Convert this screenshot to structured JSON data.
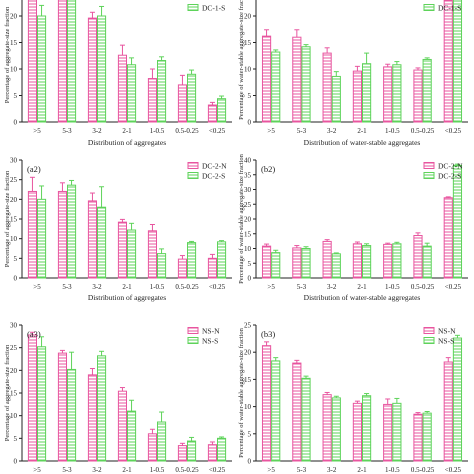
{
  "colors": {
    "n_series": "#e8559f",
    "s_series": "#5ed35a"
  },
  "chart_data": [
    {
      "type": "bar",
      "panel_label": "",
      "categories": [
        ">5",
        "5-3",
        "3-2",
        "2-1",
        "1-0.5",
        "0.5-0.25",
        "<0.25"
      ],
      "series": [
        {
          "name": "",
          "values": [
            25.8,
            23.6,
            19.6,
            12.6,
            8.2,
            7.0,
            3.2
          ],
          "errors": [
            1.6,
            1.0,
            1.1,
            1.9,
            1.8,
            1.8,
            0.5
          ]
        },
        {
          "name": "DC-1-S",
          "values": [
            20.0,
            23.8,
            20.0,
            10.8,
            11.6,
            9.0,
            4.4
          ],
          "errors": [
            2.0,
            1.4,
            1.8,
            1.3,
            0.7,
            0.8,
            0.5
          ]
        }
      ],
      "xlabel": "Distribution of aggregates",
      "ylabel": "Percentage of aggregate-size fraction",
      "ylim": [
        0,
        30
      ]
    },
    {
      "type": "bar",
      "panel_label": "",
      "categories": [
        ">5",
        "5-3",
        "3-2",
        "2-1",
        "1-0.5",
        "0.5-0.25",
        "<0.25"
      ],
      "series": [
        {
          "name": "",
          "values": [
            16.2,
            16.0,
            13.0,
            9.6,
            10.4,
            9.8,
            23.0
          ],
          "errors": [
            1.2,
            1.4,
            1.0,
            0.9,
            0.5,
            0.4,
            0.6
          ]
        },
        {
          "name": "DC-1-S",
          "values": [
            13.2,
            14.2,
            8.6,
            11.0,
            10.8,
            11.8,
            29.0
          ],
          "errors": [
            0.4,
            0.4,
            0.9,
            2.0,
            0.6,
            0.3,
            1.3
          ]
        }
      ],
      "xlabel": "Distribution of water-stable aggregates",
      "ylabel": "Percentage of water-stable aggregate-size fraction",
      "ylim": [
        0,
        30
      ]
    },
    {
      "type": "bar",
      "panel_label": "(a2)",
      "categories": [
        ">5",
        "5-3",
        "3-2",
        "2-1",
        "1-0.5",
        "0.5-0.25",
        "<0.25"
      ],
      "series": [
        {
          "name": "DC-2-N",
          "values": [
            22.0,
            22.0,
            19.6,
            14.2,
            12.0,
            4.8,
            5.0
          ],
          "errors": [
            3.6,
            2.2,
            2.0,
            0.7,
            1.6,
            0.9,
            1.0
          ]
        },
        {
          "name": "DC-2-S",
          "values": [
            20.0,
            23.6,
            18.0,
            12.2,
            6.2,
            9.0,
            9.2
          ],
          "errors": [
            3.4,
            1.2,
            5.2,
            1.7,
            1.2,
            0.3,
            0.3
          ]
        }
      ],
      "xlabel": "Distribution of aggregates",
      "ylabel": "Percentage of aggregate-size fraction",
      "ylim": [
        0,
        30
      ]
    },
    {
      "type": "bar",
      "panel_label": "(b2)",
      "categories": [
        ">5",
        "5-3",
        "3-2",
        "2-1",
        "1-0.5",
        "0.5-0.25",
        "<0.25"
      ],
      "series": [
        {
          "name": "DC-2-N",
          "values": [
            10.8,
            10.2,
            12.4,
            11.6,
            11.4,
            14.4,
            27.2
          ],
          "errors": [
            0.7,
            0.8,
            0.6,
            0.6,
            0.4,
            0.9,
            0.3
          ]
        },
        {
          "name": "DC-2-S",
          "values": [
            8.6,
            10.0,
            8.2,
            11.0,
            11.6,
            10.8,
            38.2
          ],
          "errors": [
            0.8,
            0.6,
            0.3,
            0.6,
            0.5,
            1.0,
            0.4
          ]
        }
      ],
      "xlabel": "Distribution of water-stable aggregates",
      "ylabel": "Percentage of water-stable aggregate-size fraction",
      "ylim": [
        0,
        40
      ]
    },
    {
      "type": "bar",
      "panel_label": "(a3)",
      "categories": [
        ">5",
        "5-3",
        "3-2",
        "2-1",
        "1-0.5",
        "0.5-0.25",
        "<0.25"
      ],
      "series": [
        {
          "name": "NS-N",
          "values": [
            27.8,
            23.8,
            19.0,
            15.4,
            6.0,
            3.4,
            3.6
          ],
          "errors": [
            0.6,
            0.6,
            1.4,
            0.8,
            1.0,
            0.5,
            0.6
          ]
        },
        {
          "name": "NS-S",
          "values": [
            25.2,
            20.2,
            23.2,
            11.0,
            8.6,
            4.4,
            5.0
          ],
          "errors": [
            2.2,
            3.8,
            1.0,
            2.4,
            2.2,
            0.8,
            0.3
          ]
        }
      ],
      "xlabel": "",
      "ylabel": "Percentage of aggregate-size fraction",
      "ylim": [
        0,
        30
      ]
    },
    {
      "type": "bar",
      "panel_label": "(b3)",
      "categories": [
        ">5",
        "5-3",
        "3-2",
        "2-1",
        "1-0.5",
        "0.5-0.25",
        "<0.25"
      ],
      "series": [
        {
          "name": "NS-N",
          "values": [
            21.2,
            18.0,
            12.2,
            10.6,
            10.4,
            8.6,
            18.2
          ],
          "errors": [
            0.7,
            0.5,
            0.4,
            0.4,
            1.0,
            0.3,
            0.8
          ]
        },
        {
          "name": "NS-S",
          "values": [
            18.4,
            15.2,
            11.6,
            12.0,
            10.6,
            8.8,
            22.6
          ],
          "errors": [
            0.6,
            0.4,
            0.3,
            0.4,
            0.9,
            0.3,
            0.5
          ]
        }
      ],
      "xlabel": "",
      "ylabel": "Percentage of water-stable aggregate-size fraction",
      "ylim": [
        0,
        25
      ]
    }
  ]
}
